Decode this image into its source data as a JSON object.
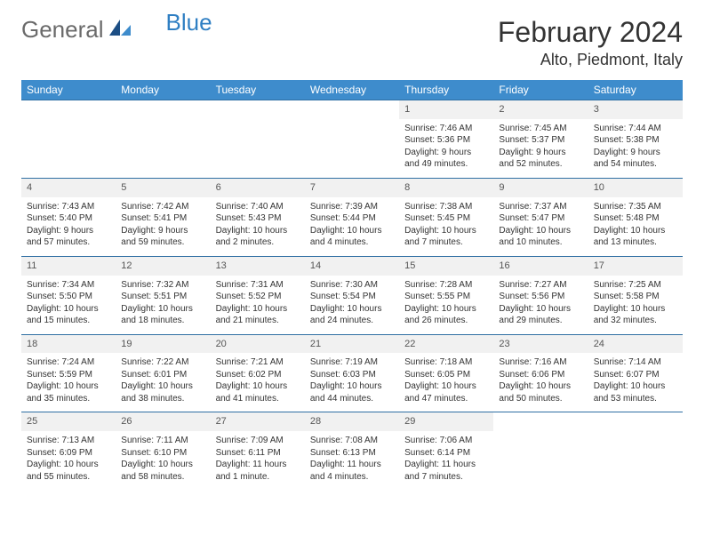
{
  "logo": {
    "general": "General",
    "blue": "Blue"
  },
  "title": "February 2024",
  "location": "Alto, Piedmont, Italy",
  "colors": {
    "header_bg": "#3e8ccc",
    "header_text": "#ffffff",
    "row_border": "#2f6fa3",
    "daynum_bg": "#f1f1f1",
    "body_text": "#333333",
    "logo_gray": "#6a6a6a",
    "logo_blue": "#2f7fc3"
  },
  "daysOfWeek": [
    "Sunday",
    "Monday",
    "Tuesday",
    "Wednesday",
    "Thursday",
    "Friday",
    "Saturday"
  ],
  "weeks": [
    [
      null,
      null,
      null,
      null,
      {
        "n": "1",
        "sr": "7:46 AM",
        "ss": "5:36 PM",
        "dl": "9 hours and 49 minutes."
      },
      {
        "n": "2",
        "sr": "7:45 AM",
        "ss": "5:37 PM",
        "dl": "9 hours and 52 minutes."
      },
      {
        "n": "3",
        "sr": "7:44 AM",
        "ss": "5:38 PM",
        "dl": "9 hours and 54 minutes."
      }
    ],
    [
      {
        "n": "4",
        "sr": "7:43 AM",
        "ss": "5:40 PM",
        "dl": "9 hours and 57 minutes."
      },
      {
        "n": "5",
        "sr": "7:42 AM",
        "ss": "5:41 PM",
        "dl": "9 hours and 59 minutes."
      },
      {
        "n": "6",
        "sr": "7:40 AM",
        "ss": "5:43 PM",
        "dl": "10 hours and 2 minutes."
      },
      {
        "n": "7",
        "sr": "7:39 AM",
        "ss": "5:44 PM",
        "dl": "10 hours and 4 minutes."
      },
      {
        "n": "8",
        "sr": "7:38 AM",
        "ss": "5:45 PM",
        "dl": "10 hours and 7 minutes."
      },
      {
        "n": "9",
        "sr": "7:37 AM",
        "ss": "5:47 PM",
        "dl": "10 hours and 10 minutes."
      },
      {
        "n": "10",
        "sr": "7:35 AM",
        "ss": "5:48 PM",
        "dl": "10 hours and 13 minutes."
      }
    ],
    [
      {
        "n": "11",
        "sr": "7:34 AM",
        "ss": "5:50 PM",
        "dl": "10 hours and 15 minutes."
      },
      {
        "n": "12",
        "sr": "7:32 AM",
        "ss": "5:51 PM",
        "dl": "10 hours and 18 minutes."
      },
      {
        "n": "13",
        "sr": "7:31 AM",
        "ss": "5:52 PM",
        "dl": "10 hours and 21 minutes."
      },
      {
        "n": "14",
        "sr": "7:30 AM",
        "ss": "5:54 PM",
        "dl": "10 hours and 24 minutes."
      },
      {
        "n": "15",
        "sr": "7:28 AM",
        "ss": "5:55 PM",
        "dl": "10 hours and 26 minutes."
      },
      {
        "n": "16",
        "sr": "7:27 AM",
        "ss": "5:56 PM",
        "dl": "10 hours and 29 minutes."
      },
      {
        "n": "17",
        "sr": "7:25 AM",
        "ss": "5:58 PM",
        "dl": "10 hours and 32 minutes."
      }
    ],
    [
      {
        "n": "18",
        "sr": "7:24 AM",
        "ss": "5:59 PM",
        "dl": "10 hours and 35 minutes."
      },
      {
        "n": "19",
        "sr": "7:22 AM",
        "ss": "6:01 PM",
        "dl": "10 hours and 38 minutes."
      },
      {
        "n": "20",
        "sr": "7:21 AM",
        "ss": "6:02 PM",
        "dl": "10 hours and 41 minutes."
      },
      {
        "n": "21",
        "sr": "7:19 AM",
        "ss": "6:03 PM",
        "dl": "10 hours and 44 minutes."
      },
      {
        "n": "22",
        "sr": "7:18 AM",
        "ss": "6:05 PM",
        "dl": "10 hours and 47 minutes."
      },
      {
        "n": "23",
        "sr": "7:16 AM",
        "ss": "6:06 PM",
        "dl": "10 hours and 50 minutes."
      },
      {
        "n": "24",
        "sr": "7:14 AM",
        "ss": "6:07 PM",
        "dl": "10 hours and 53 minutes."
      }
    ],
    [
      {
        "n": "25",
        "sr": "7:13 AM",
        "ss": "6:09 PM",
        "dl": "10 hours and 55 minutes."
      },
      {
        "n": "26",
        "sr": "7:11 AM",
        "ss": "6:10 PM",
        "dl": "10 hours and 58 minutes."
      },
      {
        "n": "27",
        "sr": "7:09 AM",
        "ss": "6:11 PM",
        "dl": "11 hours and 1 minute."
      },
      {
        "n": "28",
        "sr": "7:08 AM",
        "ss": "6:13 PM",
        "dl": "11 hours and 4 minutes."
      },
      {
        "n": "29",
        "sr": "7:06 AM",
        "ss": "6:14 PM",
        "dl": "11 hours and 7 minutes."
      },
      null,
      null
    ]
  ],
  "labels": {
    "sunrise": "Sunrise: ",
    "sunset": "Sunset: ",
    "daylight": "Daylight: "
  }
}
